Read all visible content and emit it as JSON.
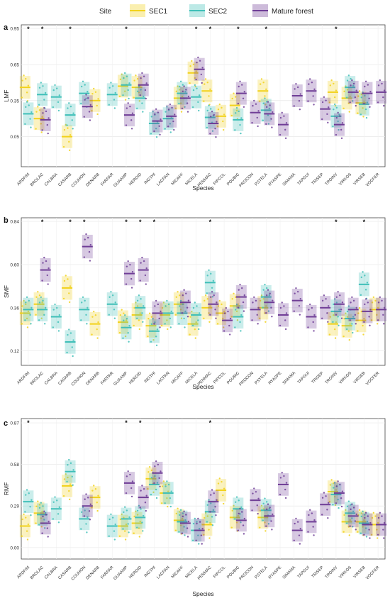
{
  "legend": {
    "title": "Site",
    "items": [
      {
        "label": "SEC1",
        "color": "#f2d21b"
      },
      {
        "label": "SEC2",
        "color": "#3fbfb8"
      },
      {
        "label": "Mature forest",
        "color": "#6f3d96"
      }
    ]
  },
  "colors": {
    "SEC1": "#f2d21b",
    "SEC2": "#3fbfb8",
    "Mature": "#6f3d96",
    "grid": "#e8e8e8"
  },
  "chart_data": [
    {
      "panel": "a",
      "type": "scatter",
      "ylabel": "LMF",
      "xlabel": "Species",
      "ylim": [
        -0.2,
        0.98
      ],
      "yticks": [
        "0.95",
        "0.65",
        "0.35",
        "0.05"
      ],
      "yticks_values": [
        0.95,
        0.65,
        0.35,
        0.05
      ],
      "categories": [
        "ARDFIM",
        "BROLAC",
        "CALBRA",
        "CASARB",
        "COUHON",
        "DENARB",
        "FARPAR",
        "GUAAMP",
        "HERDID",
        "INGTHI",
        "LACPAN",
        "MICAFF",
        "MICELA",
        "PENMAC",
        "PIPCOL",
        "POUBIC",
        "PROCON",
        "PSYELA",
        "RYASPE",
        "SIMAMA",
        "TAPGUI",
        "TRISEP",
        "TROINV",
        "VIRKOS",
        "VIRSEB",
        "VOCFER"
      ],
      "significant": [
        "ARDFIM",
        "BROLAC",
        "CASARB",
        "GUAAMP",
        "MICELA",
        "PENMAC",
        "POUBIC",
        "PSYELA",
        "TROINV"
      ],
      "series": [
        {
          "name": "SEC1",
          "means": [
            0.46,
            0.2,
            null,
            0.05,
            null,
            0.35,
            null,
            0.47,
            0.46,
            null,
            null,
            0.37,
            0.58,
            0.43,
            0.22,
            0.31,
            null,
            0.43,
            null,
            null,
            null,
            null,
            0.42,
            0.37,
            0.33,
            null
          ]
        },
        {
          "name": "SEC2",
          "means": [
            0.24,
            0.4,
            0.38,
            0.23,
            0.41,
            null,
            0.4,
            0.48,
            0.37,
            0.16,
            0.2,
            0.41,
            0.38,
            0.21,
            null,
            0.19,
            null,
            0.27,
            null,
            null,
            null,
            null,
            0.22,
            0.46,
            0.32,
            null
          ]
        },
        {
          "name": "Mature forest",
          "means": [
            null,
            0.19,
            null,
            null,
            0.3,
            null,
            null,
            0.23,
            0.48,
            0.18,
            0.22,
            0.37,
            0.61,
            0.16,
            null,
            0.41,
            0.25,
            0.24,
            0.15,
            0.39,
            0.43,
            0.28,
            0.15,
            0.42,
            0.41,
            0.42
          ]
        }
      ]
    },
    {
      "panel": "b",
      "type": "scatter",
      "ylabel": "SMF",
      "xlabel": "Species",
      "ylim": [
        0.04,
        0.86
      ],
      "yticks": [
        "0.84",
        "0.60",
        "0.36",
        "0.12"
      ],
      "yticks_values": [
        0.84,
        0.6,
        0.36,
        0.12
      ],
      "categories": [
        "ARDFIM",
        "BROLAC",
        "CALBRA",
        "CASARB",
        "COUHON",
        "DENARB",
        "FARPAR",
        "GUAAMP",
        "HERDID",
        "INGTHI",
        "LACPAN",
        "MICAFF",
        "MICELA",
        "PENMAC",
        "PIPCOL",
        "POUBIC",
        "PROCON",
        "PSYELA",
        "RYASPE",
        "SIMAMA",
        "TAPGUI",
        "TRISEP",
        "TROINV",
        "VIRKOS",
        "VIRSEB",
        "VOCFER"
      ],
      "significant": [
        "BROLAC",
        "CASARB",
        "COUHON",
        "GUAAMP",
        "HERDID",
        "INGTHI",
        "PENMAC",
        "TROINV",
        "VIRSEB"
      ],
      "series": [
        {
          "name": "SEC1",
          "means": [
            0.33,
            0.38,
            null,
            0.47,
            null,
            0.27,
            null,
            0.28,
            0.32,
            0.26,
            0.32,
            0.38,
            0.27,
            0.36,
            0.33,
            0.37,
            null,
            0.36,
            null,
            null,
            null,
            null,
            0.27,
            0.26,
            0.29,
            0.35
          ]
        },
        {
          "name": "SEC2",
          "means": [
            0.35,
            0.35,
            0.31,
            0.17,
            0.35,
            null,
            0.38,
            0.25,
            0.36,
            0.23,
            0.33,
            0.33,
            0.32,
            0.5,
            null,
            0.31,
            null,
            0.42,
            null,
            null,
            null,
            null,
            0.34,
            0.3,
            0.49,
            null
          ]
        },
        {
          "name": "Mature forest",
          "means": [
            null,
            0.57,
            null,
            null,
            0.7,
            null,
            null,
            0.55,
            0.57,
            0.33,
            null,
            0.39,
            null,
            0.38,
            0.29,
            0.42,
            0.35,
            0.39,
            0.32,
            0.4,
            0.31,
            0.36,
            0.38,
            0.35,
            0.34,
            0.35
          ]
        }
      ]
    },
    {
      "panel": "c",
      "type": "scatter",
      "ylabel": "RMF",
      "xlabel": "Species",
      "ylim": [
        -0.08,
        0.9
      ],
      "yticks": [
        "0.87",
        "0.58",
        "0.29",
        "0.00"
      ],
      "yticks_values": [
        0.87,
        0.58,
        0.29,
        0.0
      ],
      "categories": [
        "ARDFIM",
        "BROLAC",
        "CALBRA",
        "CASARB",
        "COUHON",
        "DENARB",
        "FARPAR",
        "GUAAMP",
        "HERDID",
        "INGTHI",
        "LACPAN",
        "MICAFF",
        "MICELA",
        "PENMAC",
        "PIPCOL",
        "POUBIC",
        "PROCON",
        "PSYELA",
        "RYASPE",
        "SIMAMA",
        "TAPGUI",
        "TRISEP",
        "TROINV",
        "VIRKOS",
        "VIRSEB",
        "VOCFER"
      ],
      "significant": [
        "ARDFIM",
        "GUAAMP",
        "HERDID",
        "PENMAC"
      ],
      "series": [
        {
          "name": "SEC1",
          "means": [
            0.15,
            0.24,
            null,
            0.43,
            null,
            0.35,
            null,
            0.15,
            0.17,
            0.48,
            0.38,
            0.19,
            null,
            0.16,
            0.4,
            0.21,
            null,
            0.21,
            null,
            null,
            null,
            null,
            0.39,
            0.18,
            0.18,
            0.16
          ]
        },
        {
          "name": "SEC2",
          "means": [
            0.32,
            0.23,
            0.27,
            0.53,
            0.2,
            null,
            0.15,
            0.2,
            0.21,
            0.44,
            0.38,
            0.18,
            0.12,
            0.25,
            null,
            0.27,
            null,
            0.26,
            null,
            null,
            null,
            null,
            0.37,
            0.24,
            0.17,
            null
          ]
        },
        {
          "name": "Mature forest",
          "means": [
            null,
            0.17,
            null,
            null,
            0.29,
            null,
            null,
            0.45,
            0.35,
            0.52,
            null,
            0.17,
            0.12,
            0.32,
            null,
            0.19,
            0.33,
            0.22,
            0.44,
            0.12,
            0.18,
            0.3,
            0.38,
            0.22,
            0.16,
            0.16
          ]
        }
      ]
    }
  ]
}
